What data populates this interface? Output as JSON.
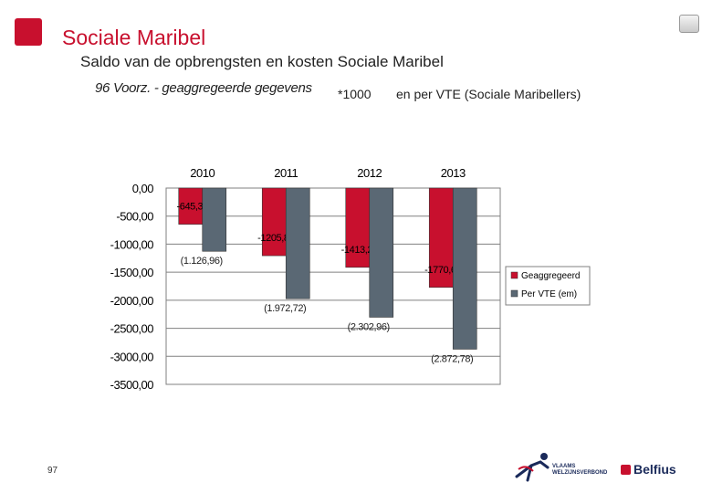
{
  "header": {
    "title": "Sociale Maribel",
    "subtitle": "Saldo van de opbrengsten en kosten Sociale Maribel",
    "figure_label": "96 Voorz. - geaggregeerde gegevens",
    "unit_note": "*1000",
    "vte_note": "en per VTE (Sociale Maribellers)"
  },
  "footer": {
    "page_number": "97",
    "vv_logo_text": "VLAAMS\nWELZIJNSVERBOND"
  },
  "brand": {
    "accent": "#c8102e",
    "logo_name": "Belfius"
  },
  "chart_data": {
    "type": "bar",
    "categories": [
      "2010",
      "2011",
      "2012",
      "2013"
    ],
    "series": [
      {
        "name": "Geaggregeerd",
        "color": "#c8102e",
        "values": [
          -645.32,
          -1205.85,
          -1413.27,
          -1770.67
        ],
        "labels": [
          "-645,32",
          "-1205,85",
          "-1413,27",
          "-1770,67"
        ]
      },
      {
        "name": "Per VTE (em)",
        "color": "#5a6874",
        "values": [
          -1126.96,
          -1972.72,
          -2302.96,
          -2872.78
        ],
        "labels": [
          "(1.126,96)",
          "(1.972,72)",
          "(2.302,96)",
          "(2.872,78)"
        ]
      }
    ],
    "yticks": [
      0,
      -500,
      -1000,
      -1500,
      -2000,
      -2500,
      -3000,
      -3500
    ],
    "ytick_labels": [
      "0,00",
      "-500,00",
      "-1000,00",
      "-1500,00",
      "-2000,00",
      "-2500,00",
      "-3000,00",
      "-3500,00"
    ],
    "ylim": [
      -3500,
      0
    ],
    "grid": true,
    "legend": "right",
    "xaxis_position": "top"
  }
}
